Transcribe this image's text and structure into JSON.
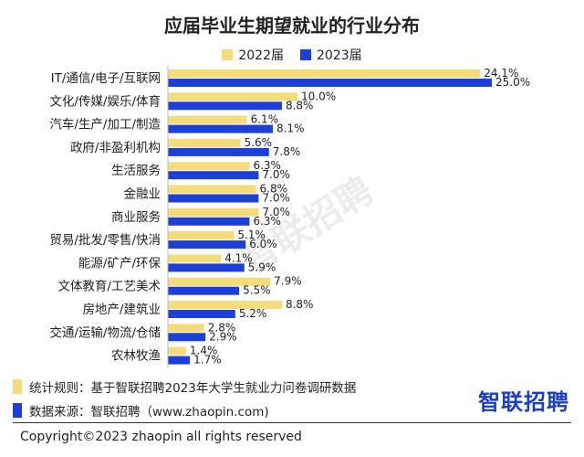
{
  "chart_data": {
    "type": "bar",
    "orientation": "horizontal",
    "title": "应届毕业生期望就业的行业分布",
    "categories": [
      "IT/通信/电子/互联网",
      "文化/传媒/娱乐/体育",
      "汽车/生产/加工/制造",
      "政府/非盈利机构",
      "生活服务",
      "金融业",
      "商业服务",
      "贸易/批发/零售/快消",
      "能源/矿产/环保",
      "文体教育/工艺美术",
      "房地产/建筑业",
      "交通/运输/物流/仓储",
      "农林牧渔"
    ],
    "series": [
      {
        "name": "2022届",
        "color": "#f5dc7a",
        "values": [
          24.1,
          10.0,
          6.1,
          5.6,
          6.3,
          6.8,
          7.0,
          5.1,
          4.1,
          7.9,
          8.8,
          2.8,
          1.4
        ],
        "labels": [
          "24.1%",
          "10.0%",
          "6.1%",
          "5.6%",
          "6.3%",
          "6.8%",
          "7.0%",
          "5.1%",
          "4.1%",
          "7.9%",
          "8.8%",
          "2.8%",
          "1.4%"
        ]
      },
      {
        "name": "2023届",
        "color": "#1c3fd8",
        "values": [
          25.0,
          8.8,
          8.1,
          7.8,
          7.0,
          7.0,
          6.3,
          6.0,
          5.9,
          5.5,
          5.2,
          2.9,
          1.7
        ],
        "labels": [
          "25.0%",
          "8.8%",
          "8.1%",
          "7.8%",
          "7.0%",
          "7.0%",
          "6.3%",
          "6.0%",
          "5.9%",
          "5.5%",
          "5.2%",
          "2.9%",
          "1.7%"
        ]
      }
    ],
    "xlim": [
      0,
      25
    ],
    "grid": false,
    "legend_position": "top-center"
  },
  "notes": {
    "method": "统计规则：基于智联招聘2023年大学生就业力问卷调研数据",
    "source": "数据来源：智联招聘（www.zhaopin.com)"
  },
  "brand": "智联招聘",
  "watermark": "智联招聘",
  "copyright": "Copyright©2023 zhaopin all rights reserved",
  "colors": {
    "note_marker_1": "#f5dc7a",
    "note_marker_2": "#1c3fd8",
    "brand": "#1a3ec8"
  }
}
